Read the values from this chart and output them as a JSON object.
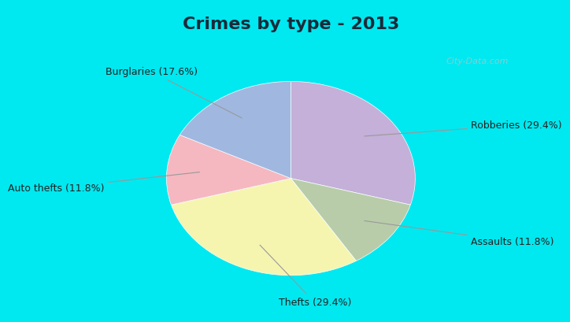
{
  "title": "Crimes by type - 2013",
  "slices": [
    {
      "label": "Robberies (29.4%)",
      "value": 29.4,
      "color": "#c4b0d8"
    },
    {
      "label": "Assaults (11.8%)",
      "value": 11.8,
      "color": "#b8ccaa"
    },
    {
      "label": "Thefts (29.4%)",
      "value": 29.4,
      "color": "#f5f5b0"
    },
    {
      "label": "Auto thefts (11.8%)",
      "value": 11.8,
      "color": "#f5b8c0"
    },
    {
      "label": "Burglaries (17.6%)",
      "value": 17.6,
      "color": "#a0b8e0"
    }
  ],
  "cyan_border": "#00e8f0",
  "inner_bg": "#d0ece0",
  "title_bg": "#00e8f0",
  "watermark": "City-Data.com",
  "title_fontsize": 16,
  "label_fontsize": 9,
  "title_color": "#1a2a3a",
  "label_color": "#222222"
}
